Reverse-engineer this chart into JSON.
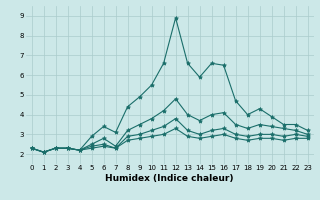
{
  "xlabel": "Humidex (Indice chaleur)",
  "ylabel": "",
  "xlim": [
    -0.5,
    23.5
  ],
  "ylim": [
    1.5,
    9.5
  ],
  "background_color": "#cce8e8",
  "grid_color": "#aacccc",
  "line_color": "#1a6e6a",
  "x": [
    0,
    1,
    2,
    3,
    4,
    5,
    6,
    7,
    8,
    9,
    10,
    11,
    12,
    13,
    14,
    15,
    16,
    17,
    18,
    19,
    20,
    21,
    22,
    23
  ],
  "lines": [
    [
      2.3,
      2.1,
      2.3,
      2.3,
      2.2,
      2.9,
      3.4,
      3.1,
      4.4,
      4.9,
      5.5,
      6.6,
      8.9,
      6.6,
      5.9,
      6.6,
      6.5,
      4.7,
      4.0,
      4.3,
      3.9,
      3.5,
      3.5,
      3.2
    ],
    [
      2.3,
      2.1,
      2.3,
      2.3,
      2.2,
      2.5,
      2.8,
      2.4,
      3.2,
      3.5,
      3.8,
      4.2,
      4.8,
      4.0,
      3.7,
      4.0,
      4.1,
      3.5,
      3.3,
      3.5,
      3.4,
      3.3,
      3.2,
      3.0
    ],
    [
      2.3,
      2.1,
      2.3,
      2.3,
      2.2,
      2.4,
      2.5,
      2.3,
      2.9,
      3.0,
      3.2,
      3.4,
      3.8,
      3.2,
      3.0,
      3.2,
      3.3,
      3.0,
      2.9,
      3.0,
      3.0,
      2.9,
      3.0,
      2.9
    ],
    [
      2.3,
      2.1,
      2.3,
      2.3,
      2.2,
      2.3,
      2.4,
      2.3,
      2.7,
      2.8,
      2.9,
      3.0,
      3.3,
      2.9,
      2.8,
      2.9,
      3.0,
      2.8,
      2.7,
      2.8,
      2.8,
      2.7,
      2.8,
      2.8
    ]
  ],
  "xtick_labels": [
    "0",
    "1",
    "2",
    "3",
    "4",
    "5",
    "6",
    "7",
    "8",
    "9",
    "10",
    "11",
    "12",
    "13",
    "14",
    "15",
    "16",
    "17",
    "18",
    "19",
    "20",
    "21",
    "22",
    "23"
  ],
  "ytick_labels": [
    "2",
    "3",
    "4",
    "5",
    "6",
    "7",
    "8",
    "9"
  ],
  "yticks": [
    2,
    3,
    4,
    5,
    6,
    7,
    8,
    9
  ],
  "marker": "*",
  "marker_size": 3,
  "linewidth": 0.8,
  "tick_fontsize": 5,
  "label_fontsize": 6.5
}
